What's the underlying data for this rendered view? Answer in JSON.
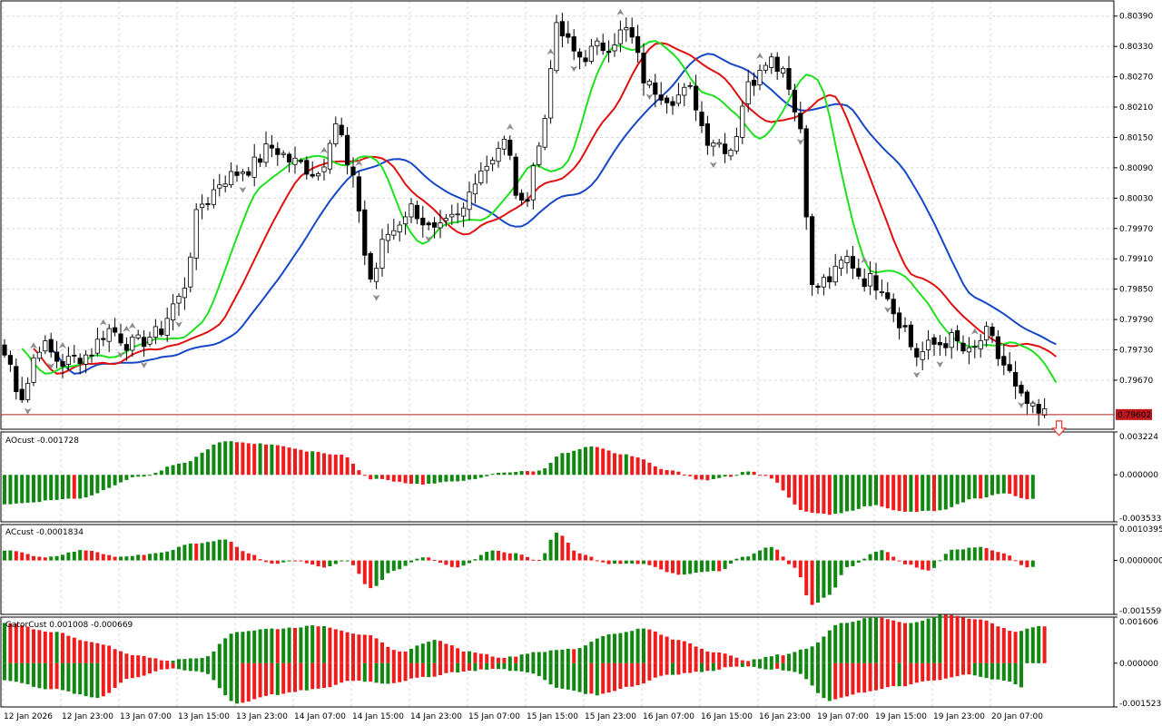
{
  "colors": {
    "background": "#ffffff",
    "grid": "#d8d8d8",
    "frame": "#000000",
    "candle_up_fill": "#ffffff",
    "candle_down_fill": "#000000",
    "candle_outline": "#000000",
    "jaw": "#1747c8",
    "teeth": "#e01010",
    "lips": "#1fe01f",
    "hist_up": "#118811",
    "hist_down": "#ee1c1c",
    "bid_line": "#b22222",
    "bid_box": "#c0161b",
    "fractal": "#8c8c8c",
    "signal_arrow": "#ee3333"
  },
  "chart_data": [
    {
      "type": "candlestick",
      "pane": "price",
      "bid": "0.79602",
      "yticks": [
        "0.80390",
        "0.80330",
        "0.80270",
        "0.80210",
        "0.80150",
        "0.80090",
        "0.80030",
        "0.79970",
        "0.79910",
        "0.79850",
        "0.79790",
        "0.79730",
        "0.79670"
      ],
      "ylim": [
        0.79573,
        0.8042
      ],
      "n_bars": 180,
      "anchors": [
        [
          0,
          0.7972
        ],
        [
          3,
          0.7964
        ],
        [
          6,
          0.7974
        ],
        [
          10,
          0.79705
        ],
        [
          14,
          0.7972
        ],
        [
          18,
          0.7977
        ],
        [
          22,
          0.7974
        ],
        [
          26,
          0.7976
        ],
        [
          30,
          0.7983
        ],
        [
          34,
          0.8002
        ],
        [
          38,
          0.8007
        ],
        [
          42,
          0.8009
        ],
        [
          46,
          0.8013
        ],
        [
          50,
          0.801
        ],
        [
          54,
          0.8008
        ],
        [
          57,
          0.8018
        ],
        [
          60,
          0.8006
        ],
        [
          63,
          0.7987
        ],
        [
          66,
          0.7996
        ],
        [
          70,
          0.8001
        ],
        [
          74,
          0.7996
        ],
        [
          78,
          0.7999
        ],
        [
          82,
          0.8009
        ],
        [
          86,
          0.8014
        ],
        [
          89,
          0.8001
        ],
        [
          92,
          0.8013
        ],
        [
          95,
          0.8036
        ],
        [
          99,
          0.8031
        ],
        [
          103,
          0.8033
        ],
        [
          107,
          0.8036
        ],
        [
          111,
          0.8025
        ],
        [
          115,
          0.8023
        ],
        [
          118,
          0.8024
        ],
        [
          121,
          0.8015
        ],
        [
          125,
          0.8013
        ],
        [
          128,
          0.8025
        ],
        [
          131,
          0.8031
        ],
        [
          134,
          0.8029
        ],
        [
          137,
          0.8017
        ],
        [
          139,
          0.7985
        ],
        [
          142,
          0.7987
        ],
        [
          145,
          0.7991
        ],
        [
          148,
          0.7987
        ],
        [
          151,
          0.7986
        ],
        [
          154,
          0.7979
        ],
        [
          157,
          0.7972
        ],
        [
          160,
          0.7974
        ],
        [
          163,
          0.7975
        ],
        [
          166,
          0.7972
        ],
        [
          169,
          0.7976
        ],
        [
          172,
          0.797
        ],
        [
          175,
          0.7963
        ],
        [
          178,
          0.796
        ],
        [
          179,
          0.79602
        ]
      ],
      "fractals_up": [
        5,
        10,
        17,
        21,
        22,
        55,
        61,
        87,
        94,
        106,
        130,
        148,
        167
      ],
      "fractals_down": [
        4,
        8,
        20,
        24,
        30,
        41,
        64,
        73,
        98,
        111,
        122,
        137,
        152,
        157,
        161,
        175
      ],
      "signal_down_index": 179
    },
    {
      "type": "histogram",
      "pane": "AOcust",
      "name": "AOcust -0.001728",
      "yticks": [
        "0.003224",
        "0.000000",
        "-0.003533"
      ],
      "ylim": [
        -0.003533,
        0.003224
      ],
      "anchors": [
        [
          0,
          -0.0022
        ],
        [
          12,
          -0.0018
        ],
        [
          24,
          -0.0001
        ],
        [
          30,
          0.0008
        ],
        [
          38,
          0.0025
        ],
        [
          46,
          0.0023
        ],
        [
          52,
          0.0018
        ],
        [
          58,
          0.0015
        ],
        [
          63,
          -0.0003
        ],
        [
          72,
          -0.0007
        ],
        [
          80,
          -0.0004
        ],
        [
          86,
          0.0002
        ],
        [
          92,
          0.0003
        ],
        [
          96,
          0.0016
        ],
        [
          101,
          0.0021
        ],
        [
          107,
          0.0015
        ],
        [
          115,
          0.0003
        ],
        [
          120,
          -0.0004
        ],
        [
          125,
          -0.0001
        ],
        [
          128,
          0.0003
        ],
        [
          131,
          -0.0001
        ],
        [
          138,
          -0.0028
        ],
        [
          142,
          -0.003
        ],
        [
          150,
          -0.0023
        ],
        [
          155,
          -0.0028
        ],
        [
          161,
          -0.0027
        ],
        [
          167,
          -0.0018
        ],
        [
          172,
          -0.0014
        ],
        [
          176,
          -0.0018
        ]
      ]
    },
    {
      "type": "histogram",
      "pane": "ACcust",
      "name": "ACcust -0.0001834",
      "yticks": [
        "0.0010395",
        "0.0000000",
        "-0.0015590"
      ],
      "ylim": [
        -0.001559,
        0.0010395
      ],
      "anchors": [
        [
          0,
          0.0003
        ],
        [
          7,
          0.0001
        ],
        [
          14,
          0.0003
        ],
        [
          20,
          0.0001
        ],
        [
          26,
          0.0002
        ],
        [
          33,
          0.0005
        ],
        [
          38,
          0.0006
        ],
        [
          42,
          0.0002
        ],
        [
          46,
          -0.0001
        ],
        [
          50,
          0.0
        ],
        [
          55,
          -0.0002
        ],
        [
          59,
          0.0
        ],
        [
          63,
          -0.0008
        ],
        [
          67,
          -0.0003
        ],
        [
          72,
          0.0001
        ],
        [
          78,
          -0.0002
        ],
        [
          84,
          0.0003
        ],
        [
          88,
          0.0002
        ],
        [
          92,
          0.0
        ],
        [
          95,
          0.0008
        ],
        [
          99,
          0.0002
        ],
        [
          104,
          -0.0001
        ],
        [
          110,
          -0.0001
        ],
        [
          116,
          -0.0004
        ],
        [
          123,
          -0.0003
        ],
        [
          127,
          0.0001
        ],
        [
          132,
          0.0004
        ],
        [
          136,
          -0.0002
        ],
        [
          139,
          -0.0013
        ],
        [
          142,
          -0.001
        ],
        [
          145,
          -0.0002
        ],
        [
          151,
          0.0003
        ],
        [
          155,
          -0.0001
        ],
        [
          159,
          -0.0003
        ],
        [
          163,
          0.0003
        ],
        [
          168,
          0.0004
        ],
        [
          172,
          0.0002
        ],
        [
          176,
          -0.0002
        ]
      ]
    },
    {
      "type": "histogram",
      "pane": "GatorCust",
      "name": "GatorCust 0.001008 -0.000669",
      "yticks": [
        "0.001606",
        "0.000000",
        "-0.001523"
      ],
      "ylim": [
        -0.001523,
        0.001606
      ],
      "upper_anchors": [
        [
          0,
          0.0014
        ],
        [
          8,
          0.0011
        ],
        [
          16,
          0.0007
        ],
        [
          22,
          0.0003
        ],
        [
          28,
          0.0001
        ],
        [
          34,
          0.0002
        ],
        [
          40,
          0.0011
        ],
        [
          46,
          0.0012
        ],
        [
          54,
          0.0013
        ],
        [
          62,
          0.001
        ],
        [
          68,
          0.0004
        ],
        [
          74,
          0.0008
        ],
        [
          80,
          0.0004
        ],
        [
          86,
          0.0002
        ],
        [
          92,
          0.0004
        ],
        [
          98,
          0.0005
        ],
        [
          104,
          0.001
        ],
        [
          110,
          0.0012
        ],
        [
          116,
          0.0008
        ],
        [
          122,
          0.0004
        ],
        [
          128,
          0.0001
        ],
        [
          134,
          0.0003
        ],
        [
          138,
          0.0005
        ],
        [
          144,
          0.0014
        ],
        [
          150,
          0.0016
        ],
        [
          156,
          0.0014
        ],
        [
          162,
          0.0017
        ],
        [
          168,
          0.0015
        ],
        [
          174,
          0.0011
        ],
        [
          178,
          0.0013
        ],
        [
          182,
          0.0013
        ]
      ],
      "lower_anchors": [
        [
          0,
          -0.0006
        ],
        [
          8,
          -0.0009
        ],
        [
          16,
          -0.0012
        ],
        [
          22,
          -0.0005
        ],
        [
          28,
          -0.0002
        ],
        [
          34,
          -0.0003
        ],
        [
          40,
          -0.0014
        ],
        [
          46,
          -0.0011
        ],
        [
          54,
          -0.0009
        ],
        [
          60,
          -0.0006
        ],
        [
          66,
          -0.0007
        ],
        [
          72,
          -0.0005
        ],
        [
          78,
          -0.0003
        ],
        [
          84,
          -0.0002
        ],
        [
          90,
          -0.0003
        ],
        [
          96,
          -0.0009
        ],
        [
          102,
          -0.0011
        ],
        [
          108,
          -0.0008
        ],
        [
          114,
          -0.0004
        ],
        [
          120,
          -0.0003
        ],
        [
          126,
          -0.0001
        ],
        [
          132,
          -0.0002
        ],
        [
          136,
          -0.0003
        ],
        [
          142,
          -0.0013
        ],
        [
          148,
          -0.001
        ],
        [
          154,
          -0.0008
        ],
        [
          160,
          -0.0006
        ],
        [
          166,
          -0.0004
        ],
        [
          172,
          -0.0006
        ],
        [
          176,
          -0.0009
        ]
      ]
    }
  ],
  "xticks": [
    "12 Jan 2026",
    "12 Jan 23:00",
    "13 Jan 07:00",
    "13 Jan 15:00",
    "13 Jan 23:00",
    "14 Jan 07:00",
    "14 Jan 15:00",
    "14 Jan 23:00",
    "15 Jan 07:00",
    "15 Jan 15:00",
    "15 Jan 23:00",
    "16 Jan 07:00",
    "16 Jan 15:00",
    "16 Jan 23:00",
    "19 Jan 07:00",
    "19 Jan 15:00",
    "19 Jan 23:00",
    "20 Jan 07:00"
  ]
}
